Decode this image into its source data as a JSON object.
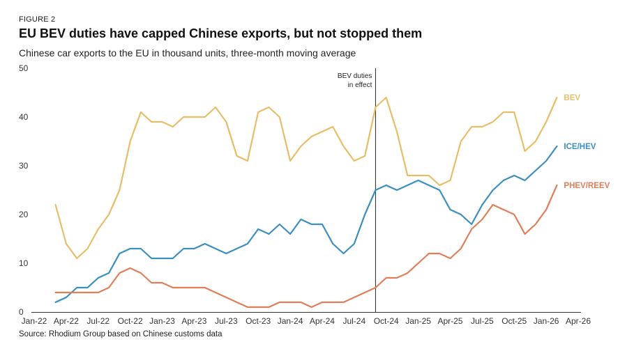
{
  "header": {
    "figure_label": "FIGURE 2",
    "title": "EU BEV duties have capped Chinese exports, but not stopped them",
    "subtitle": "Chinese car exports to the EU in thousand units, three-month moving average"
  },
  "footer": {
    "source": "Source: Rhodium Group based on Chinese customs data"
  },
  "colors": {
    "BEV": "#e8bd68",
    "ICE/HEV": "#3a8fc0",
    "PHEV/REEV": "#e07e5a",
    "axis": "#333333",
    "event_line": "#222222"
  },
  "chart_data": {
    "type": "line",
    "title": "EU BEV duties have capped Chinese exports, but not stopped them",
    "ylabel": "thousand units",
    "ylim": [
      0,
      50
    ],
    "yticks": [
      0,
      10,
      20,
      30,
      40,
      50
    ],
    "xlim_month_index": [
      0,
      51
    ],
    "xticks": [
      {
        "label": "Jan-22",
        "m": 0
      },
      {
        "label": "Apr-22",
        "m": 3
      },
      {
        "label": "Jul-22",
        "m": 6
      },
      {
        "label": "Oct-22",
        "m": 9
      },
      {
        "label": "Jan-23",
        "m": 12
      },
      {
        "label": "Apr-23",
        "m": 15
      },
      {
        "label": "Jul-23",
        "m": 18
      },
      {
        "label": "Oct-23",
        "m": 21
      },
      {
        "label": "Jan-24",
        "m": 24
      },
      {
        "label": "Apr-24",
        "m": 27
      },
      {
        "label": "Jul-24",
        "m": 30
      },
      {
        "label": "Oct-24",
        "m": 33
      },
      {
        "label": "Jan-25",
        "m": 36
      },
      {
        "label": "Apr-25",
        "m": 39
      },
      {
        "label": "Jul-25",
        "m": 42
      },
      {
        "label": "Oct-25",
        "m": 45
      },
      {
        "label": "Jan-26",
        "m": 48
      },
      {
        "label": "Apr-26",
        "m": 51
      }
    ],
    "x_start_month_index": 2,
    "x_note": "month index 0 = Jan-22; values start at Mar-22",
    "annotation": {
      "text_lines": [
        "BEV duties",
        "in effect"
      ],
      "m": 32
    },
    "series": [
      {
        "name": "BEV",
        "values": [
          22,
          14,
          11,
          13,
          17,
          20,
          25,
          35,
          41,
          39,
          39,
          38,
          40,
          40,
          40,
          42,
          39,
          32,
          31,
          41,
          42,
          40,
          31,
          34,
          36,
          37,
          38,
          34,
          31,
          32,
          42,
          44,
          37,
          28,
          28,
          28,
          26,
          27,
          35,
          38,
          38,
          39,
          41,
          41,
          33,
          35,
          39,
          44
        ]
      },
      {
        "name": "ICE/HEV",
        "values": [
          2,
          3,
          5,
          5,
          7,
          8,
          12,
          13,
          13,
          11,
          11,
          11,
          13,
          13,
          14,
          13,
          12,
          13,
          14,
          17,
          16,
          18,
          16,
          19,
          18,
          18,
          14,
          12,
          14,
          20,
          25,
          26,
          25,
          26,
          27,
          26,
          25,
          21,
          20,
          18,
          22,
          25,
          27,
          28,
          27,
          29,
          31,
          34
        ]
      },
      {
        "name": "PHEV/REEV",
        "values": [
          4,
          4,
          4,
          4,
          4,
          5,
          8,
          9,
          8,
          6,
          6,
          5,
          5,
          5,
          5,
          4,
          3,
          2,
          1,
          1,
          1,
          2,
          2,
          2,
          1,
          2,
          2,
          2,
          3,
          4,
          5,
          7,
          7,
          8,
          10,
          12,
          12,
          11,
          13,
          17,
          19,
          22,
          21,
          20,
          16,
          18,
          21,
          26
        ]
      }
    ]
  }
}
